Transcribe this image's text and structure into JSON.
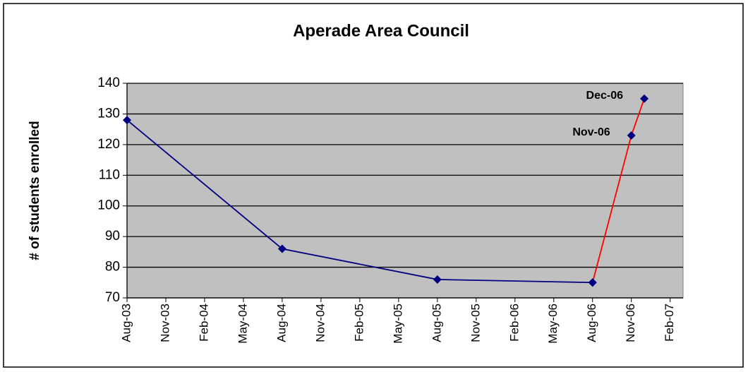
{
  "chart_data": {
    "type": "line",
    "title": "Aperade Area Council",
    "y_label": "# of students enrolled",
    "series": [
      {
        "color": "#000080",
        "x": [
          "2003-08",
          "2004-08",
          "2005-08",
          "2006-08"
        ],
        "values": [
          128,
          86,
          76,
          75
        ]
      },
      {
        "color": "#ff0000",
        "x": [
          "2006-08",
          "2006-11",
          "2006-12"
        ],
        "values": [
          75,
          123,
          135
        ],
        "point_labels": [
          null,
          "Nov-06",
          "Dec-06"
        ]
      }
    ],
    "marker_color": "#000080",
    "xlim": [
      "2003-08",
      "2007-03"
    ],
    "xticks": [
      {
        "value": "2003-08",
        "label": "Aug-03"
      },
      {
        "value": "2003-11",
        "label": "Nov-03"
      },
      {
        "value": "2004-02",
        "label": "Feb-04"
      },
      {
        "value": "2004-05",
        "label": "May-04"
      },
      {
        "value": "2004-08",
        "label": "Aug-04"
      },
      {
        "value": "2004-11",
        "label": "Nov-04"
      },
      {
        "value": "2005-02",
        "label": "Feb-05"
      },
      {
        "value": "2005-05",
        "label": "May-05"
      },
      {
        "value": "2005-08",
        "label": "Aug-05"
      },
      {
        "value": "2005-11",
        "label": "Nov-05"
      },
      {
        "value": "2006-02",
        "label": "Feb-06"
      },
      {
        "value": "2006-05",
        "label": "May-06"
      },
      {
        "value": "2006-08",
        "label": "Aug-06"
      },
      {
        "value": "2006-11",
        "label": "Nov-06"
      },
      {
        "value": "2007-02",
        "label": "Feb-07"
      }
    ],
    "ylim": [
      70,
      140
    ],
    "yticks": [
      70,
      80,
      90,
      100,
      110,
      120,
      130,
      140
    ],
    "grid": true,
    "plot_background": "#c0c0c0"
  }
}
